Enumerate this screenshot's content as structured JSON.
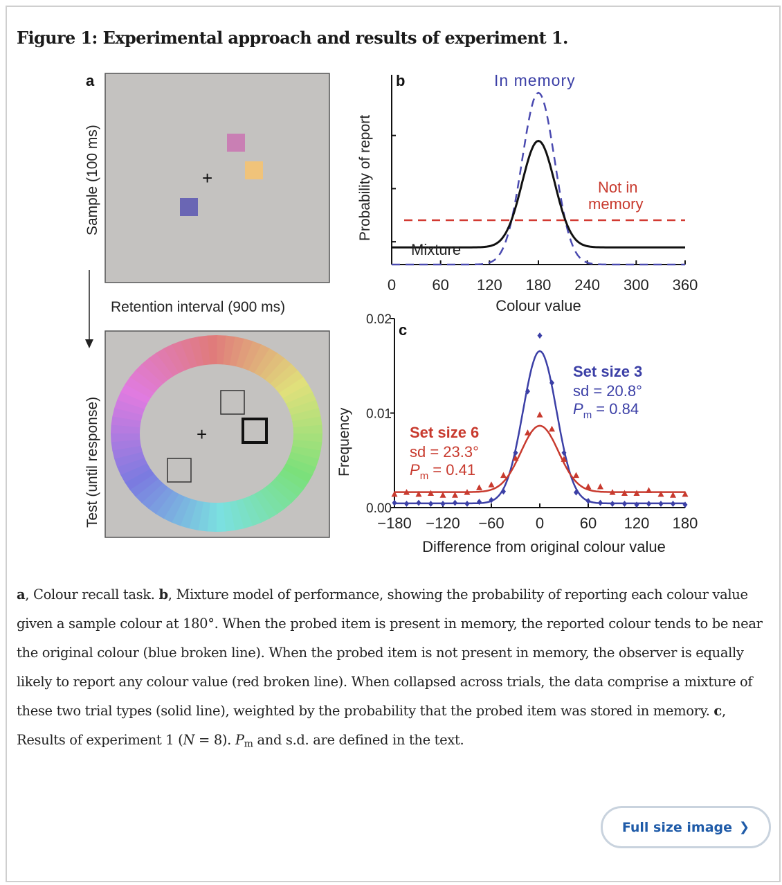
{
  "figure": {
    "title": "Figure 1: Experimental approach and results of experiment 1.",
    "panel_a": {
      "label": "a",
      "sample_label": "Sample (100 ms)",
      "retention_label": "Retention interval (900 ms)",
      "test_label": "Test (until response)",
      "fixation": "+"
    },
    "panel_b": {
      "label": "b",
      "ylabel": "Probability of report",
      "xlabel": "Colour value",
      "in_memory_label": "In memory",
      "not_in_memory_label_1": "Not in",
      "not_in_memory_label_2": "memory",
      "mixture_label": "Mixture"
    },
    "panel_c": {
      "label": "c",
      "ylabel": "Frequency",
      "xlabel": "Difference from original colour value",
      "set3_title": "Set size 3",
      "set3_sd": "sd = 20.8°",
      "set3_pm_prefix": "P",
      "set3_pm_sub": "m",
      "set3_pm_value": " = 0.84",
      "set6_title": "Set size 6",
      "set6_sd": "sd = 23.3°",
      "set6_pm_prefix": "P",
      "set6_pm_sub": "m",
      "set6_pm_value": " = 0.41"
    }
  },
  "chart_data": [
    {
      "type": "line",
      "title": "",
      "xlabel": "Colour value",
      "ylabel": "Probability of report",
      "xlim": [
        0,
        360
      ],
      "x_ticks": [
        "0",
        "60",
        "120",
        "180",
        "240",
        "300",
        "360"
      ],
      "series": [
        {
          "name": "In memory",
          "style": "dashed",
          "color": "#4a4ab0",
          "center": 180,
          "sd": 20,
          "peak": 1.0,
          "baseline": 0
        },
        {
          "name": "Not in memory",
          "style": "dashed",
          "color": "#d23a32",
          "value": 0.16
        },
        {
          "name": "Mixture",
          "style": "solid",
          "color": "#111111",
          "center": 180,
          "sd": 20,
          "peak": 0.72,
          "baseline": 0.1
        }
      ]
    },
    {
      "type": "line",
      "title": "",
      "xlabel": "Difference from original colour value",
      "ylabel": "Frequency",
      "xlim": [
        -180,
        180
      ],
      "ylim": [
        0,
        0.02
      ],
      "x_ticks": [
        "−180",
        "−120",
        "−60",
        "0",
        "60",
        "120",
        "180"
      ],
      "y_ticks": [
        "0.00",
        "0.01",
        "0.02"
      ],
      "series": [
        {
          "name": "Set size 3",
          "color": "#3b3fa6",
          "fit": {
            "sd": 20.8,
            "pm": 0.84
          },
          "x": [
            -180,
            -165,
            -150,
            -135,
            -120,
            -105,
            -90,
            -75,
            -60,
            -45,
            -30,
            -15,
            0,
            15,
            30,
            45,
            60,
            75,
            90,
            105,
            120,
            135,
            150,
            165,
            180
          ],
          "y": [
            0.0005,
            0.0004,
            0.0005,
            0.0004,
            0.0004,
            0.0005,
            0.0004,
            0.0006,
            0.0008,
            0.0017,
            0.0058,
            0.0123,
            0.0182,
            0.0132,
            0.0058,
            0.0016,
            0.0007,
            0.0005,
            0.0004,
            0.0004,
            0.0003,
            0.0004,
            0.0004,
            0.0004,
            0.0003
          ]
        },
        {
          "name": "Set size 6",
          "color": "#c83a2e",
          "fit": {
            "sd": 23.3,
            "pm": 0.41
          },
          "x": [
            -180,
            -165,
            -150,
            -135,
            -120,
            -105,
            -90,
            -75,
            -60,
            -45,
            -30,
            -15,
            0,
            15,
            30,
            45,
            60,
            75,
            90,
            105,
            120,
            135,
            150,
            165,
            180
          ],
          "y": [
            0.0014,
            0.0016,
            0.0014,
            0.0015,
            0.0013,
            0.0013,
            0.0016,
            0.0021,
            0.0024,
            0.0034,
            0.0052,
            0.0079,
            0.0098,
            0.0083,
            0.0051,
            0.0034,
            0.0022,
            0.0022,
            0.0016,
            0.0015,
            0.0015,
            0.0018,
            0.0014,
            0.0013,
            0.0014
          ]
        }
      ]
    }
  ],
  "caption": {
    "p1_bold": "a",
    "p1": ", Colour recall task. ",
    "p2_bold": "b",
    "p2": ", Mixture model of performance, showing the probability of reporting each colour value given a sample colour at 180°. When the probed item is present in memory, the reported colour tends to be near the original colour (blue broken line). When the probed item is not present in memory, the observer is equally likely to report any colour value (red broken line). When collapsed across trials, the data comprise a mixture of these two trial types (solid line), weighted by the probability that the probed item was stored in memory. ",
    "p3_bold": "c",
    "p3": ", Results of experiment 1 (",
    "p3_n": "N",
    "p3_eq": " = 8). ",
    "p3_pm": "P",
    "p3_pm_sub": "m",
    "p3_end": " and s.d. are defined in the text."
  },
  "button": {
    "label": "Full size image",
    "icon": "chevron-right-icon"
  }
}
